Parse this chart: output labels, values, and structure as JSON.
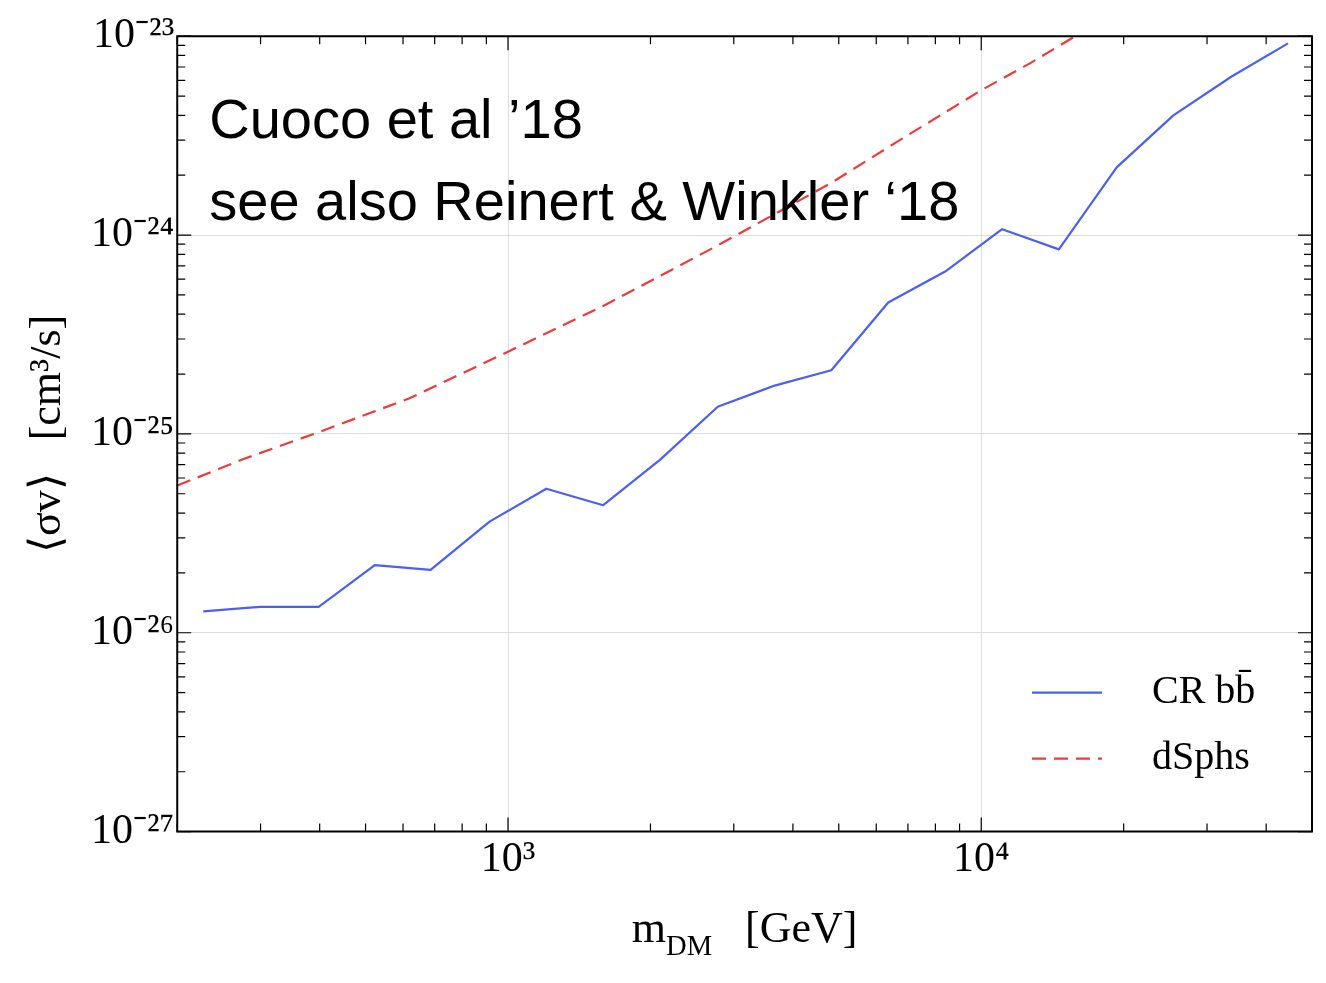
{
  "chart_data": {
    "type": "line",
    "xlabel": "m$_{DM}$   [GeV]",
    "ylabel": "⟨σv⟩   [cm³/s]",
    "log": "xy",
    "annotations": [
      "Cuoco et al ’18",
      "see also Reinert & Winkler ‘18"
    ],
    "xlim": [
      200,
      50000
    ],
    "xticks": [
      {
        "value": 200,
        "label": null
      },
      {
        "value": 300,
        "label": null
      },
      {
        "value": 400,
        "label": null
      },
      {
        "value": 500,
        "label": null
      },
      {
        "value": 600,
        "label": null
      },
      {
        "value": 700,
        "label": null
      },
      {
        "value": 800,
        "label": null
      },
      {
        "value": 900,
        "label": null
      },
      {
        "value": 1000,
        "label": "10³"
      },
      {
        "value": 2000,
        "label": null
      },
      {
        "value": 3000,
        "label": null
      },
      {
        "value": 4000,
        "label": null
      },
      {
        "value": 5000,
        "label": null
      },
      {
        "value": 6000,
        "label": null
      },
      {
        "value": 7000,
        "label": null
      },
      {
        "value": 8000,
        "label": null
      },
      {
        "value": 9000,
        "label": null
      },
      {
        "value": 10000,
        "label": "10⁴"
      },
      {
        "value": 20000,
        "label": null
      },
      {
        "value": 30000,
        "label": null
      },
      {
        "value": 40000,
        "label": null
      },
      {
        "value": 50000,
        "label": null
      }
    ],
    "ylim": [
      1e-27,
      1e-23
    ],
    "yticks": [
      {
        "value": 1e-27,
        "label": "10⁻²⁷"
      },
      {
        "value": 2e-27,
        "label": null
      },
      {
        "value": 3e-27,
        "label": null
      },
      {
        "value": 4e-27,
        "label": null
      },
      {
        "value": 5e-27,
        "label": null
      },
      {
        "value": 6e-27,
        "label": null
      },
      {
        "value": 7e-27,
        "label": null
      },
      {
        "value": 8e-27,
        "label": null
      },
      {
        "value": 9e-27,
        "label": null
      },
      {
        "value": 1e-26,
        "label": "10⁻²⁶"
      },
      {
        "value": 2e-26,
        "label": null
      },
      {
        "value": 3e-26,
        "label": null
      },
      {
        "value": 4e-26,
        "label": null
      },
      {
        "value": 5e-26,
        "label": null
      },
      {
        "value": 6e-26,
        "label": null
      },
      {
        "value": 7e-26,
        "label": null
      },
      {
        "value": 8e-26,
        "label": null
      },
      {
        "value": 9e-26,
        "label": null
      },
      {
        "value": 1e-25,
        "label": "10⁻²⁵"
      },
      {
        "value": 2e-25,
        "label": null
      },
      {
        "value": 3e-25,
        "label": null
      },
      {
        "value": 4e-25,
        "label": null
      },
      {
        "value": 5e-25,
        "label": null
      },
      {
        "value": 6e-25,
        "label": null
      },
      {
        "value": 7e-25,
        "label": null
      },
      {
        "value": 8e-25,
        "label": null
      },
      {
        "value": 9e-25,
        "label": null
      },
      {
        "value": 1e-24,
        "label": "10⁻²⁴"
      },
      {
        "value": 2e-24,
        "label": null
      },
      {
        "value": 3e-24,
        "label": null
      },
      {
        "value": 4e-24,
        "label": null
      },
      {
        "value": 5e-24,
        "label": null
      },
      {
        "value": 6e-24,
        "label": null
      },
      {
        "value": 7e-24,
        "label": null
      },
      {
        "value": 8e-24,
        "label": null
      },
      {
        "value": 9e-24,
        "label": null
      },
      {
        "value": 1e-23,
        "label": "10⁻²³"
      }
    ],
    "grid": true,
    "legend": "bottom right",
    "series": [
      {
        "name": "CR bb̄",
        "color": "#4a5ff5",
        "line_style": "solid",
        "x": [
          227,
          300,
          398,
          523,
          686,
          914,
          1205,
          1589,
          2094,
          2775,
          3660,
          4822,
          6360,
          8390,
          11070,
          14590,
          19330,
          25470,
          33750,
          44480
        ],
        "values": [
          1.28e-26,
          1.35e-26,
          1.35e-26,
          2.19e-26,
          2.07e-26,
          3.62e-26,
          5.3e-26,
          4.38e-26,
          7.4e-26,
          1.37e-25,
          1.75e-25,
          2.09e-25,
          4.58e-25,
          6.55e-25,
          1.07e-24,
          8.47e-25,
          2.19e-24,
          4e-24,
          6.25e-24,
          9.2e-24
        ]
      },
      {
        "name": "dSphs",
        "color": "#f03a3a",
        "line_style": "dashed",
        "x": [
          200,
          277,
          398,
          619,
          1000,
          1589,
          2775,
          4822,
          6570,
          10000,
          12670,
          15800
        ],
        "values": [
          5.5e-26,
          7.5e-26,
          1.02e-25,
          1.51e-25,
          2.59e-25,
          4.4e-25,
          8.87e-25,
          1.83e-24,
          2.9e-24,
          5.35e-24,
          7.3e-24,
          1e-23
        ]
      }
    ]
  }
}
